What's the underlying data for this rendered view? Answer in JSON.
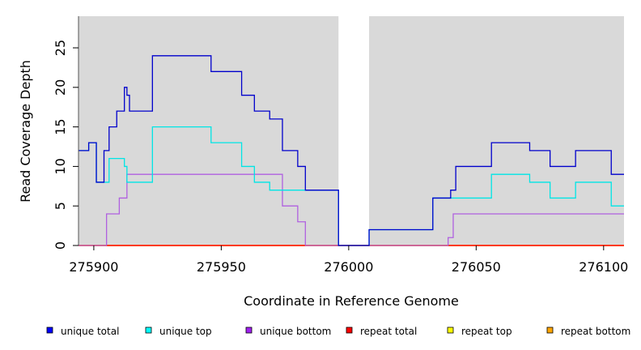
{
  "chart_data": {
    "type": "line",
    "xlabel": "Coordinate in Reference Genome",
    "ylabel": "Read Coverage Depth",
    "xlim": [
      275894,
      276108
    ],
    "ylim": [
      0,
      29
    ],
    "xticks": [
      275900,
      275950,
      276000,
      276050,
      276100
    ],
    "yticks": [
      0,
      5,
      10,
      15,
      20,
      25
    ],
    "grid": false,
    "background": "#d9d9d9",
    "gap": [
      275996,
      276008
    ],
    "legend_position": "bottom",
    "series": [
      {
        "name": "unique total",
        "color": "#0000cc",
        "legend_color": "#0000ff",
        "step": [
          [
            275894,
            12
          ],
          [
            275898,
            13
          ],
          [
            275901,
            8
          ],
          [
            275904,
            12
          ],
          [
            275906,
            15
          ],
          [
            275909,
            17
          ],
          [
            275912,
            20
          ],
          [
            275913,
            19
          ],
          [
            275914,
            17
          ],
          [
            275923,
            24
          ],
          [
            275946,
            22
          ],
          [
            275958,
            19
          ],
          [
            275963,
            17
          ],
          [
            275969,
            16
          ],
          [
            275974,
            12
          ],
          [
            275980,
            10
          ],
          [
            275983,
            7
          ],
          [
            275996,
            0
          ],
          [
            276008,
            2
          ],
          [
            276033,
            6
          ],
          [
            276040,
            7
          ],
          [
            276042,
            10
          ],
          [
            276056,
            13
          ],
          [
            276071,
            12
          ],
          [
            276079,
            10
          ],
          [
            276089,
            12
          ],
          [
            276103,
            9
          ],
          [
            276108,
            9
          ]
        ]
      },
      {
        "name": "unique top",
        "color": "#00e5e5",
        "legend_color": "#00ffff",
        "step": [
          [
            275894,
            12
          ],
          [
            275898,
            13
          ],
          [
            275901,
            8
          ],
          [
            275906,
            11
          ],
          [
            275912,
            10
          ],
          [
            275913,
            8
          ],
          [
            275923,
            15
          ],
          [
            275946,
            13
          ],
          [
            275958,
            10
          ],
          [
            275963,
            8
          ],
          [
            275969,
            7
          ],
          [
            275974,
            7
          ],
          [
            275983,
            7
          ],
          [
            275996,
            0
          ],
          [
            276008,
            2
          ],
          [
            276033,
            6
          ],
          [
            276056,
            9
          ],
          [
            276071,
            8
          ],
          [
            276079,
            6
          ],
          [
            276089,
            8
          ],
          [
            276103,
            5
          ],
          [
            276108,
            5
          ]
        ]
      },
      {
        "name": "unique bottom",
        "color": "#b060e0",
        "legend_color": "#a020f0",
        "step": [
          [
            275894,
            0
          ],
          [
            275905,
            4
          ],
          [
            275910,
            6
          ],
          [
            275913,
            9
          ],
          [
            275974,
            5
          ],
          [
            275980,
            3
          ],
          [
            275983,
            0
          ],
          [
            276039,
            1
          ],
          [
            276041,
            4
          ],
          [
            276108,
            4
          ]
        ]
      },
      {
        "name": "repeat total",
        "color": "#ff0000",
        "legend_color": "#ff0000",
        "step": [
          [
            275894,
            0
          ],
          [
            276108,
            0
          ]
        ]
      },
      {
        "name": "repeat top",
        "color": "#ffff00",
        "legend_color": "#ffff00",
        "step": [
          [
            275894,
            0
          ],
          [
            276108,
            0
          ]
        ]
      },
      {
        "name": "repeat bottom",
        "color": "#ffa500",
        "legend_color": "#ffa500",
        "step": [
          [
            275894,
            0
          ],
          [
            276108,
            0
          ]
        ]
      }
    ]
  }
}
